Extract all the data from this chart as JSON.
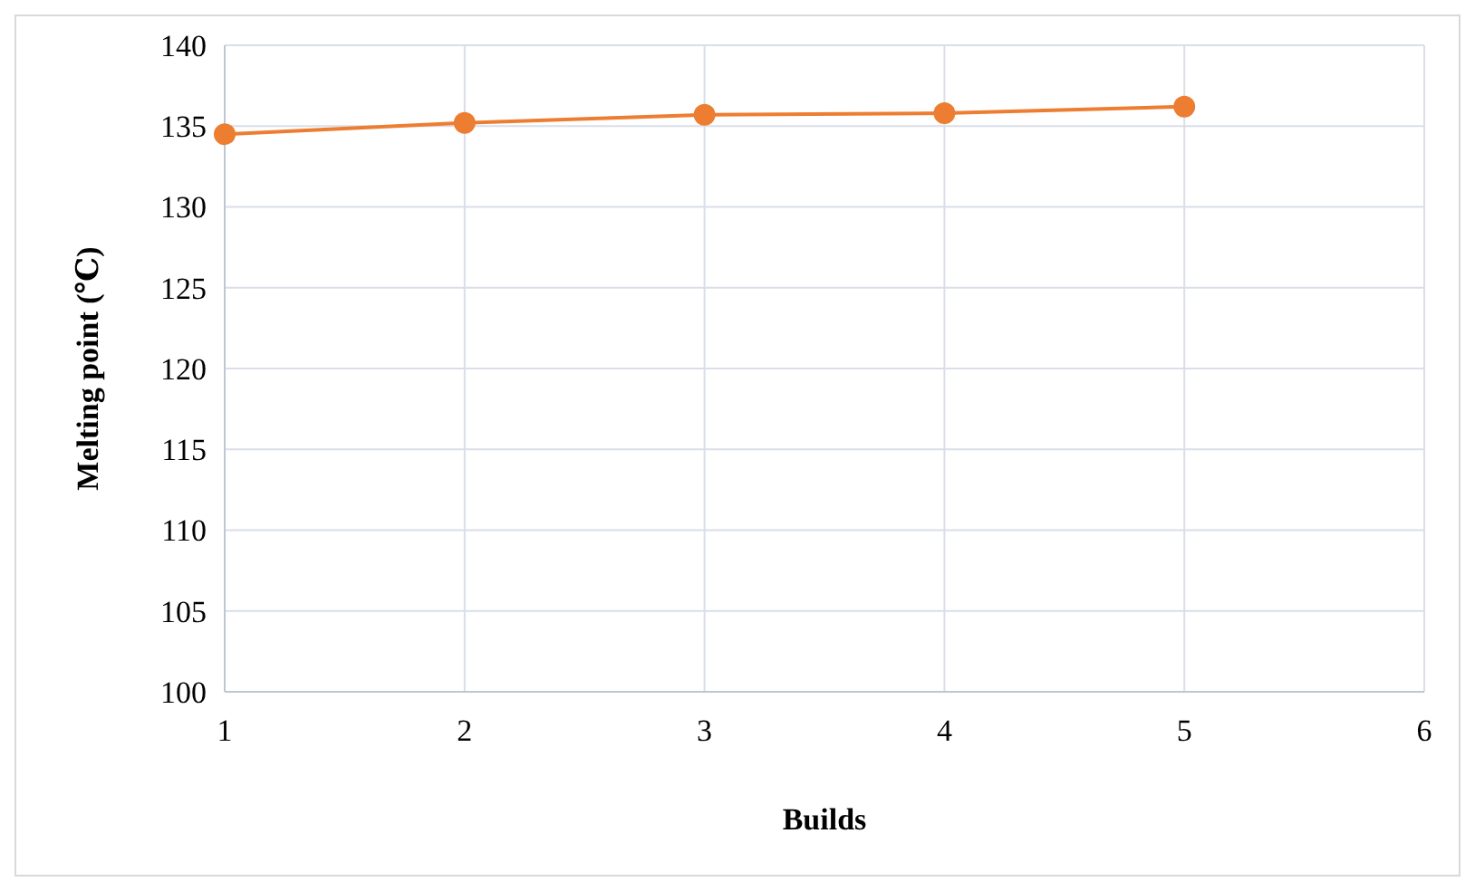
{
  "chart_data": {
    "type": "line",
    "xlabel": "Builds",
    "ylabel": "Melting point (℃)",
    "x": [
      1,
      2,
      3,
      4,
      5
    ],
    "series": [
      {
        "color": "#ed7d31",
        "values": [
          134.5,
          135.2,
          135.7,
          135.8,
          136.2
        ]
      }
    ],
    "xlim": [
      1,
      6
    ],
    "xticks": [
      1,
      2,
      3,
      4,
      5,
      6
    ],
    "ylim": [
      100,
      140
    ],
    "yticks": [
      100,
      105,
      110,
      115,
      120,
      125,
      130,
      135,
      140
    ],
    "grid": true,
    "marker": "circle",
    "line_style": "solid"
  }
}
